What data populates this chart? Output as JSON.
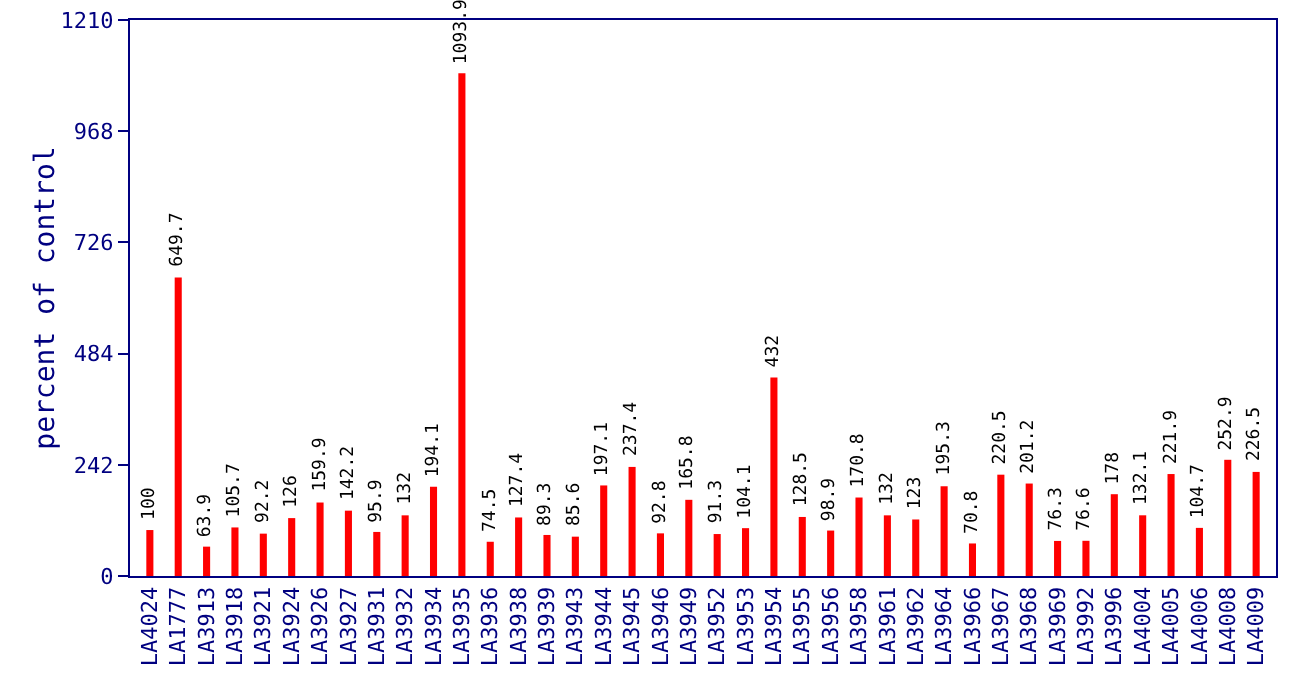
{
  "chart_data": {
    "type": "bar",
    "ylabel": "percent of control",
    "categories": [
      "LA4024",
      "LA1777",
      "LA3913",
      "LA3918",
      "LA3921",
      "LA3924",
      "LA3926",
      "LA3927",
      "LA3931",
      "LA3932",
      "LA3934",
      "LA3935",
      "LA3936",
      "LA3938",
      "LA3939",
      "LA3943",
      "LA3944",
      "LA3945",
      "LA3946",
      "LA3949",
      "LA3952",
      "LA3953",
      "LA3954",
      "LA3955",
      "LA3956",
      "LA3958",
      "LA3961",
      "LA3962",
      "LA3964",
      "LA3966",
      "LA3967",
      "LA3968",
      "LA3969",
      "LA3992",
      "LA3996",
      "LA4004",
      "LA4005",
      "LA4006",
      "LA4008",
      "LA4009"
    ],
    "values": [
      100,
      649.7,
      63.9,
      105.7,
      92.2,
      126,
      159.9,
      142.2,
      95.9,
      132,
      194.1,
      1093.9,
      74.5,
      127.4,
      89.3,
      85.6,
      197.1,
      237.4,
      92.8,
      165.8,
      91.3,
      104.1,
      432,
      128.5,
      98.9,
      170.8,
      132,
      123,
      195.3,
      70.8,
      220.5,
      201.2,
      76.3,
      76.6,
      178,
      132.1,
      221.9,
      104.7,
      252.9,
      226.5
    ],
    "color": "#ff0000",
    "data_labels": true,
    "ylim": [
      0,
      1210
    ],
    "yticks": [
      0,
      242,
      484,
      726,
      968,
      1210
    ],
    "grid": false,
    "legend": false
  }
}
